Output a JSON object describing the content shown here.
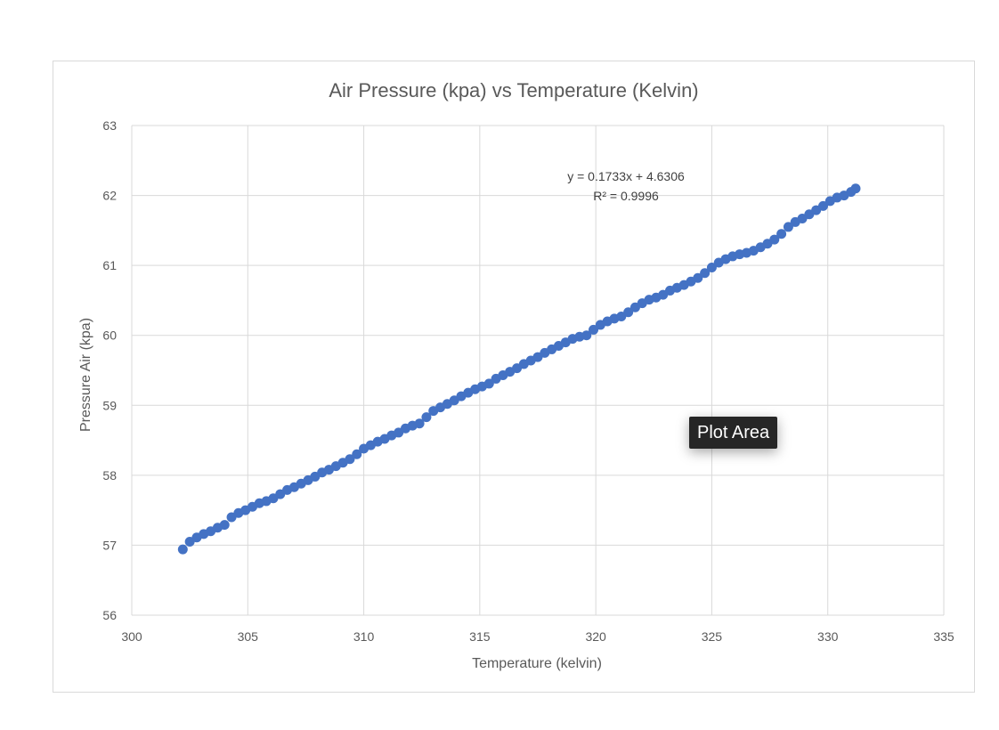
{
  "chart_data": {
    "type": "scatter",
    "title": "Air Pressure (kpa) vs Temperature (Kelvin)",
    "xlabel": "Temperature (kelvin)",
    "ylabel": "Pressure Air (kpa)",
    "xlim": [
      300,
      335
    ],
    "ylim": [
      56,
      63
    ],
    "x_ticks": [
      300,
      305,
      310,
      315,
      320,
      325,
      330,
      335
    ],
    "y_ticks": [
      56,
      57,
      58,
      59,
      60,
      61,
      62,
      63
    ],
    "grid": true,
    "legend": "none",
    "marker_color": "#4472c4",
    "series": [
      {
        "points": [
          [
            302.2,
            56.94
          ],
          [
            302.5,
            57.05
          ],
          [
            302.8,
            57.11
          ],
          [
            303.1,
            57.16
          ],
          [
            303.4,
            57.2
          ],
          [
            303.7,
            57.25
          ],
          [
            304.0,
            57.29
          ],
          [
            304.3,
            57.4
          ],
          [
            304.6,
            57.46
          ],
          [
            304.9,
            57.5
          ],
          [
            305.2,
            57.55
          ],
          [
            305.5,
            57.6
          ],
          [
            305.8,
            57.63
          ],
          [
            306.1,
            57.67
          ],
          [
            306.4,
            57.73
          ],
          [
            306.7,
            57.79
          ],
          [
            307.0,
            57.83
          ],
          [
            307.3,
            57.88
          ],
          [
            307.6,
            57.93
          ],
          [
            307.9,
            57.98
          ],
          [
            308.2,
            58.04
          ],
          [
            308.5,
            58.08
          ],
          [
            308.8,
            58.13
          ],
          [
            309.1,
            58.18
          ],
          [
            309.4,
            58.23
          ],
          [
            309.7,
            58.3
          ],
          [
            310.0,
            58.38
          ],
          [
            310.3,
            58.43
          ],
          [
            310.6,
            58.48
          ],
          [
            310.9,
            58.52
          ],
          [
            311.2,
            58.57
          ],
          [
            311.5,
            58.61
          ],
          [
            311.8,
            58.67
          ],
          [
            312.1,
            58.71
          ],
          [
            312.4,
            58.74
          ],
          [
            312.7,
            58.83
          ],
          [
            313.0,
            58.92
          ],
          [
            313.3,
            58.97
          ],
          [
            313.6,
            59.02
          ],
          [
            313.9,
            59.07
          ],
          [
            314.2,
            59.13
          ],
          [
            314.5,
            59.18
          ],
          [
            314.8,
            59.23
          ],
          [
            315.1,
            59.27
          ],
          [
            315.4,
            59.31
          ],
          [
            315.7,
            59.38
          ],
          [
            316.0,
            59.43
          ],
          [
            316.3,
            59.48
          ],
          [
            316.6,
            59.53
          ],
          [
            316.9,
            59.59
          ],
          [
            317.2,
            59.64
          ],
          [
            317.5,
            59.69
          ],
          [
            317.8,
            59.75
          ],
          [
            318.1,
            59.8
          ],
          [
            318.4,
            59.85
          ],
          [
            318.7,
            59.9
          ],
          [
            319.0,
            59.95
          ],
          [
            319.3,
            59.98
          ],
          [
            319.6,
            60.0
          ],
          [
            319.9,
            60.08
          ],
          [
            320.2,
            60.15
          ],
          [
            320.5,
            60.2
          ],
          [
            320.8,
            60.24
          ],
          [
            321.1,
            60.27
          ],
          [
            321.4,
            60.33
          ],
          [
            321.7,
            60.4
          ],
          [
            322.0,
            60.46
          ],
          [
            322.3,
            60.51
          ],
          [
            322.6,
            60.54
          ],
          [
            322.9,
            60.58
          ],
          [
            323.2,
            60.64
          ],
          [
            323.5,
            60.68
          ],
          [
            323.8,
            60.72
          ],
          [
            324.1,
            60.77
          ],
          [
            324.4,
            60.82
          ],
          [
            324.7,
            60.89
          ],
          [
            325.0,
            60.97
          ],
          [
            325.3,
            61.04
          ],
          [
            325.6,
            61.09
          ],
          [
            325.9,
            61.13
          ],
          [
            326.2,
            61.16
          ],
          [
            326.5,
            61.18
          ],
          [
            326.8,
            61.21
          ],
          [
            327.1,
            61.26
          ],
          [
            327.4,
            61.31
          ],
          [
            327.7,
            61.37
          ],
          [
            328.0,
            61.45
          ],
          [
            328.3,
            61.55
          ],
          [
            328.6,
            61.62
          ],
          [
            328.9,
            61.67
          ],
          [
            329.2,
            61.73
          ],
          [
            329.5,
            61.79
          ],
          [
            329.8,
            61.85
          ],
          [
            330.1,
            61.92
          ],
          [
            330.4,
            61.97
          ],
          [
            330.7,
            62.0
          ],
          [
            331.0,
            62.05
          ],
          [
            331.2,
            62.1
          ]
        ]
      }
    ],
    "trendline": {
      "equation": "y = 0.1733x + 4.6306",
      "r_squared": "R² = 0.9996"
    }
  },
  "tooltip": {
    "label": "Plot Area"
  }
}
